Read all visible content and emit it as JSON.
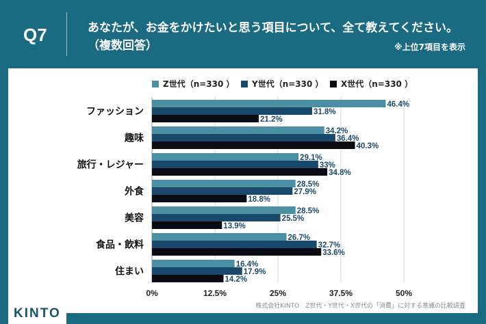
{
  "header": {
    "question_number": "Q7",
    "title": "あなたが、お金をかけたいと思う項目について、全て教えてください。",
    "subtitle": "（複数回答）",
    "note": "※上位7項目を表示"
  },
  "footer": {
    "logo": "KINTO",
    "source": "株式会社KINTO　Z世代・Y世代・X世代の「消費」に対する意識の比較調査"
  },
  "chart_data": {
    "type": "bar",
    "orientation": "horizontal",
    "categories": [
      "ファッション",
      "趣味",
      "旅行・レジャー",
      "外食",
      "美容",
      "食品・飲料",
      "住まい"
    ],
    "series": [
      {
        "name": "Z世代（n=330 ）",
        "color": "#4a8fa3",
        "values": [
          46.4,
          34.2,
          29.1,
          28.5,
          28.5,
          26.7,
          16.4
        ],
        "labels": [
          "46.4%",
          "34.2%",
          "29.1%",
          "28.5%",
          "28.5%",
          "26.7%",
          "16.4%"
        ]
      },
      {
        "name": "Y世代（n=330 ）",
        "color": "#1a4a6b",
        "values": [
          31.8,
          36.4,
          33,
          27.9,
          25.5,
          32.7,
          17.9
        ],
        "labels": [
          "31.8%",
          "36.4%",
          "33%",
          "27.9%",
          "25.5%",
          "32.7%",
          "17.9%"
        ]
      },
      {
        "name": "X世代（n=330 ）",
        "color": "#0b0b14",
        "values": [
          21.2,
          40.3,
          34.8,
          18.8,
          13.9,
          33.6,
          14.2
        ],
        "labels": [
          "21.2%",
          "40.3%",
          "34.8%",
          "18.8%",
          "13.9%",
          "33.6%",
          "14.2%"
        ]
      }
    ],
    "xlim": [
      0,
      50
    ],
    "x_ticks": [
      "0%",
      "12.5%",
      "25%",
      "37.5%",
      "50%"
    ],
    "grid": true,
    "legend_position": "top"
  }
}
